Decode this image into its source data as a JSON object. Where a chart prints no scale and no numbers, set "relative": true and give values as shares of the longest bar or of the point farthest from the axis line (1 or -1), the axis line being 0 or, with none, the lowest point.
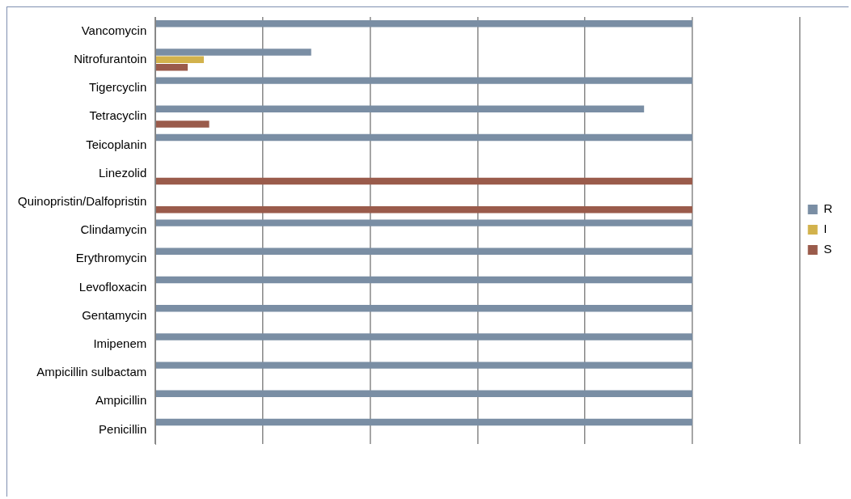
{
  "chart_data": {
    "type": "bar",
    "orientation": "horizontal",
    "relative": true,
    "grid": "x",
    "legend": "right",
    "categories": [
      "Vancomycin",
      "Nitrofurantoin",
      "Tigercyclin",
      "Tetracyclin",
      "Teicoplanin",
      "Linezolid",
      "Quinopristin/Dalfopristin",
      "Clindamycin",
      "Erythromycin",
      "Levofloxacin",
      "Gentamycin",
      "Imipenem",
      "Ampicillin sulbactam",
      "Ampicillin",
      "Penicillin"
    ],
    "series": [
      {
        "name": "R",
        "color": "#7a8ea4",
        "values": [
          1,
          0.29,
          1,
          0.91,
          1,
          0,
          0,
          1,
          1,
          1,
          1,
          1,
          1,
          1,
          1
        ]
      },
      {
        "name": "I",
        "color": "#d2b24c",
        "values": [
          0,
          0.09,
          0,
          0,
          0,
          0,
          0,
          0,
          0,
          0,
          0,
          0,
          0,
          0,
          0
        ]
      },
      {
        "name": "S",
        "color": "#9a5b4b",
        "values": [
          0,
          0.06,
          0,
          0.1,
          0,
          1,
          1,
          0,
          0,
          0,
          0,
          0,
          0,
          0,
          0
        ]
      }
    ]
  }
}
